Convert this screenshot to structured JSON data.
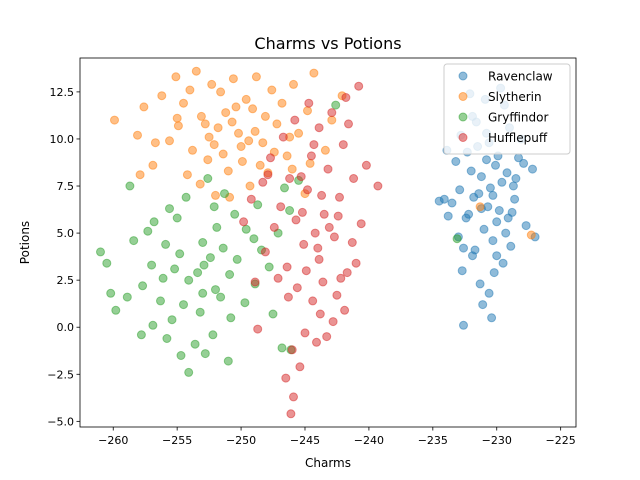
{
  "chart_data": {
    "type": "scatter",
    "title": "Charms vs Potions",
    "xlabel": "Charms",
    "ylabel": "Potions",
    "xlim": [
      -262.6,
      -223.8
    ],
    "ylim": [
      -5.3,
      14.3
    ],
    "xticks": [
      -260,
      -255,
      -250,
      -245,
      -240,
      -235,
      -230,
      -225
    ],
    "yticks": [
      -5.0,
      -2.5,
      0.0,
      2.5,
      5.0,
      7.5,
      10.0,
      12.5
    ],
    "grid": false,
    "legend_position": "top-right",
    "marker_alpha": 0.5,
    "series": [
      {
        "name": "Ravenclaw",
        "color": "#1f77b4",
        "points": [
          [
            -231.2,
            8.0
          ],
          [
            -230.5,
            7.4
          ],
          [
            -231.8,
            6.9
          ],
          [
            -230.1,
            8.6
          ],
          [
            -229.6,
            7.7
          ],
          [
            -232.4,
            5.8
          ],
          [
            -231.0,
            5.2
          ],
          [
            -230.7,
            6.4
          ],
          [
            -229.9,
            9.1
          ],
          [
            -231.5,
            9.6
          ],
          [
            -232.9,
            7.3
          ],
          [
            -228.8,
            6.1
          ],
          [
            -230.3,
            4.6
          ],
          [
            -231.9,
            3.8
          ],
          [
            -232.6,
            4.2
          ],
          [
            -229.3,
            5.0
          ],
          [
            -228.5,
            7.9
          ],
          [
            -227.9,
            8.7
          ],
          [
            -230.8,
            10.3
          ],
          [
            -231.6,
            10.9
          ],
          [
            -229.4,
            11.8
          ],
          [
            -232.1,
            12.4
          ],
          [
            -230.9,
            12.1
          ],
          [
            -229.0,
            10.6
          ],
          [
            -233.5,
            6.6
          ],
          [
            -233.8,
            5.9
          ],
          [
            -234.1,
            6.8
          ],
          [
            -233.2,
            8.8
          ],
          [
            -232.3,
            9.3
          ],
          [
            -228.3,
            9.0
          ],
          [
            -227.2,
            8.4
          ],
          [
            -228.9,
            4.3
          ],
          [
            -230.2,
            2.9
          ],
          [
            -231.3,
            2.3
          ],
          [
            -232.7,
            3.0
          ],
          [
            -230.6,
            1.8
          ],
          [
            -231.1,
            1.2
          ],
          [
            -230.4,
            0.5
          ],
          [
            -232.6,
            0.1
          ],
          [
            -229.5,
            3.4
          ],
          [
            -227.7,
            5.4
          ],
          [
            -227.0,
            4.8
          ],
          [
            -228.6,
            6.8
          ],
          [
            -229.8,
            6.2
          ],
          [
            -231.4,
            7.1
          ],
          [
            -230.0,
            5.6
          ],
          [
            -229.2,
            8.2
          ],
          [
            -232.0,
            8.3
          ],
          [
            -233.0,
            4.8
          ],
          [
            -230.6,
            9.8
          ],
          [
            -231.9,
            11.2
          ],
          [
            -229.7,
            12.7
          ],
          [
            -233.9,
            9.4
          ],
          [
            -232.8,
            10.2
          ],
          [
            -228.1,
            10.0
          ],
          [
            -231.7,
            4.1
          ],
          [
            -230.3,
            7.0
          ],
          [
            -229.1,
            5.8
          ],
          [
            -231.2,
            6.3
          ],
          [
            -230.8,
            8.9
          ],
          [
            -232.2,
            6.0
          ],
          [
            -228.7,
            7.5
          ],
          [
            -234.5,
            6.7
          ],
          [
            -230.0,
            3.8
          ]
        ]
      },
      {
        "name": "Slytherin",
        "color": "#ff7f0e",
        "points": [
          [
            -250.2,
            10.3
          ],
          [
            -249.1,
            11.6
          ],
          [
            -251.4,
            9.2
          ],
          [
            -252.8,
            10.8
          ],
          [
            -248.3,
            9.8
          ],
          [
            -247.6,
            12.6
          ],
          [
            -253.5,
            13.6
          ],
          [
            -255.1,
            13.3
          ],
          [
            -256.2,
            12.3
          ],
          [
            -257.6,
            11.7
          ],
          [
            -259.9,
            11.0
          ],
          [
            -258.1,
            10.2
          ],
          [
            -256.9,
            8.6
          ],
          [
            -256.7,
            9.8
          ],
          [
            -254.2,
            8.1
          ],
          [
            -252.0,
            7.0
          ],
          [
            -250.9,
            6.9
          ],
          [
            -249.3,
            7.5
          ],
          [
            -247.9,
            8.2
          ],
          [
            -246.4,
            9.1
          ],
          [
            -245.5,
            10.3
          ],
          [
            -244.8,
            11.5
          ],
          [
            -244.3,
            13.5
          ],
          [
            -245.9,
            12.9
          ],
          [
            -248.8,
            13.3
          ],
          [
            -250.6,
            13.2
          ],
          [
            -252.3,
            12.9
          ],
          [
            -254.5,
            11.9
          ],
          [
            -253.1,
            11.2
          ],
          [
            -251.8,
            10.6
          ],
          [
            -250.0,
            9.6
          ],
          [
            -248.9,
            10.4
          ],
          [
            -247.2,
            10.8
          ],
          [
            -246.0,
            8.4
          ],
          [
            -245.0,
            7.1
          ],
          [
            -243.4,
            9.4
          ],
          [
            -242.9,
            11.0
          ],
          [
            -242.1,
            12.3
          ],
          [
            -255.6,
            9.9
          ],
          [
            -254.9,
            10.7
          ],
          [
            -253.8,
            9.4
          ],
          [
            -252.6,
            8.9
          ],
          [
            -251.2,
            11.4
          ],
          [
            -249.6,
            12.1
          ],
          [
            -248.1,
            11.2
          ],
          [
            -246.8,
            11.9
          ],
          [
            -257.9,
            8.1
          ],
          [
            -251.0,
            8.3
          ],
          [
            -249.9,
            8.8
          ],
          [
            -253.2,
            7.6
          ],
          [
            -249.4,
            9.9
          ],
          [
            -250.7,
            10.9
          ],
          [
            -252.1,
            9.7
          ],
          [
            -247.4,
            9.3
          ],
          [
            -246.2,
            10.1
          ],
          [
            -255.0,
            11.1
          ],
          [
            -251.6,
            12.5
          ],
          [
            -244.6,
            8.7
          ],
          [
            -227.3,
            4.9
          ],
          [
            -231.3,
            6.4
          ],
          [
            -254.0,
            12.6
          ],
          [
            -248.5,
            8.6
          ],
          [
            -250.4,
            11.7
          ],
          [
            -252.5,
            10.1
          ]
        ]
      },
      {
        "name": "Gryffindor",
        "color": "#2ca02c",
        "points": [
          [
            -254.1,
            2.5
          ],
          [
            -253.0,
            1.8
          ],
          [
            -255.2,
            3.1
          ],
          [
            -252.4,
            3.7
          ],
          [
            -256.3,
            1.4
          ],
          [
            -257.7,
            2.2
          ],
          [
            -258.9,
            1.6
          ],
          [
            -259.8,
            0.9
          ],
          [
            -261.0,
            4.0
          ],
          [
            -260.5,
            3.4
          ],
          [
            -260.2,
            1.8
          ],
          [
            -258.4,
            4.6
          ],
          [
            -256.8,
            5.6
          ],
          [
            -255.6,
            6.3
          ],
          [
            -254.3,
            6.9
          ],
          [
            -252.6,
            7.9
          ],
          [
            -251.3,
            7.1
          ],
          [
            -250.5,
            6.0
          ],
          [
            -249.6,
            5.2
          ],
          [
            -248.4,
            4.1
          ],
          [
            -247.8,
            3.2
          ],
          [
            -248.9,
            2.3
          ],
          [
            -249.7,
            1.3
          ],
          [
            -250.8,
            0.5
          ],
          [
            -252.2,
            -0.4
          ],
          [
            -253.6,
            -0.9
          ],
          [
            -254.7,
            -1.5
          ],
          [
            -255.8,
            -0.6
          ],
          [
            -256.9,
            0.1
          ],
          [
            -257.8,
            -0.4
          ],
          [
            -254.1,
            -2.4
          ],
          [
            -252.8,
            -1.4
          ],
          [
            -251.0,
            -1.8
          ],
          [
            -253.0,
            4.5
          ],
          [
            -251.9,
            5.3
          ],
          [
            -250.3,
            3.6
          ],
          [
            -249.0,
            4.7
          ],
          [
            -247.1,
            5.0
          ],
          [
            -246.2,
            6.2
          ],
          [
            -246.6,
            7.4
          ],
          [
            -245.5,
            7.8
          ],
          [
            -242.6,
            11.8
          ],
          [
            -258.7,
            7.5
          ],
          [
            -254.8,
            3.9
          ],
          [
            -253.4,
            2.9
          ],
          [
            -252.0,
            2.0
          ],
          [
            -250.9,
            2.8
          ],
          [
            -255.9,
            4.4
          ],
          [
            -257.0,
            3.3
          ],
          [
            -254.5,
            1.2
          ],
          [
            -253.2,
            0.8
          ],
          [
            -251.6,
            1.6
          ],
          [
            -256.1,
            2.6
          ],
          [
            -255.4,
            0.4
          ],
          [
            -252.9,
            3.3
          ],
          [
            -251.4,
            4.2
          ],
          [
            -247.5,
            0.7
          ],
          [
            -246.8,
            -1.1
          ],
          [
            -246.1,
            -1.2
          ],
          [
            -248.7,
            6.5
          ],
          [
            -257.3,
            5.1
          ],
          [
            -255.0,
            5.8
          ],
          [
            -252.1,
            6.4
          ],
          [
            -233.1,
            4.7
          ]
        ]
      },
      {
        "name": "Hufflepuff",
        "color": "#d62728",
        "points": [
          [
            -244.2,
            5.0
          ],
          [
            -243.5,
            6.0
          ],
          [
            -245.1,
            4.4
          ],
          [
            -244.8,
            7.3
          ],
          [
            -243.9,
            3.6
          ],
          [
            -242.7,
            4.8
          ],
          [
            -245.7,
            5.7
          ],
          [
            -246.4,
            3.2
          ],
          [
            -242.3,
            6.9
          ],
          [
            -243.2,
            8.4
          ],
          [
            -244.5,
            9.1
          ],
          [
            -245.3,
            8.0
          ],
          [
            -242.0,
            9.7
          ],
          [
            -241.6,
            10.8
          ],
          [
            -242.9,
            11.4
          ],
          [
            -243.9,
            10.6
          ],
          [
            -244.7,
            11.9
          ],
          [
            -241.8,
            12.2
          ],
          [
            -240.8,
            12.8
          ],
          [
            -239.3,
            7.5
          ],
          [
            -240.2,
            8.6
          ],
          [
            -241.2,
            7.9
          ],
          [
            -246.9,
            6.4
          ],
          [
            -247.4,
            5.3
          ],
          [
            -248.1,
            4.0
          ],
          [
            -247.1,
            2.6
          ],
          [
            -246.3,
            1.6
          ],
          [
            -245.6,
            2.1
          ],
          [
            -244.4,
            1.4
          ],
          [
            -243.6,
            2.4
          ],
          [
            -242.5,
            1.7
          ],
          [
            -241.7,
            2.9
          ],
          [
            -241.9,
            0.9
          ],
          [
            -242.8,
            0.3
          ],
          [
            -243.3,
            -0.5
          ],
          [
            -244.1,
            -0.8
          ],
          [
            -245.0,
            -0.3
          ],
          [
            -246.0,
            -1.2
          ],
          [
            -245.4,
            -2.1
          ],
          [
            -246.5,
            -2.7
          ],
          [
            -245.9,
            -3.7
          ],
          [
            -246.1,
            -4.6
          ],
          [
            -248.7,
            -0.1
          ],
          [
            -248.9,
            2.4
          ],
          [
            -249.8,
            5.6
          ],
          [
            -249.2,
            6.8
          ],
          [
            -248.3,
            7.7
          ],
          [
            -247.7,
            9.0
          ],
          [
            -246.7,
            10.1
          ],
          [
            -245.8,
            11.0
          ],
          [
            -243.1,
            5.3
          ],
          [
            -244.0,
            4.2
          ],
          [
            -245.2,
            6.1
          ],
          [
            -242.4,
            5.9
          ],
          [
            -243.7,
            7.0
          ],
          [
            -244.9,
            3.0
          ],
          [
            -241.3,
            4.5
          ],
          [
            -240.6,
            5.5
          ],
          [
            -241.0,
            3.4
          ],
          [
            -246.2,
            7.9
          ],
          [
            -244.3,
            9.7
          ],
          [
            -242.2,
            2.6
          ],
          [
            -243.8,
            0.7
          ],
          [
            -247.9,
            8.1
          ]
        ]
      }
    ]
  }
}
